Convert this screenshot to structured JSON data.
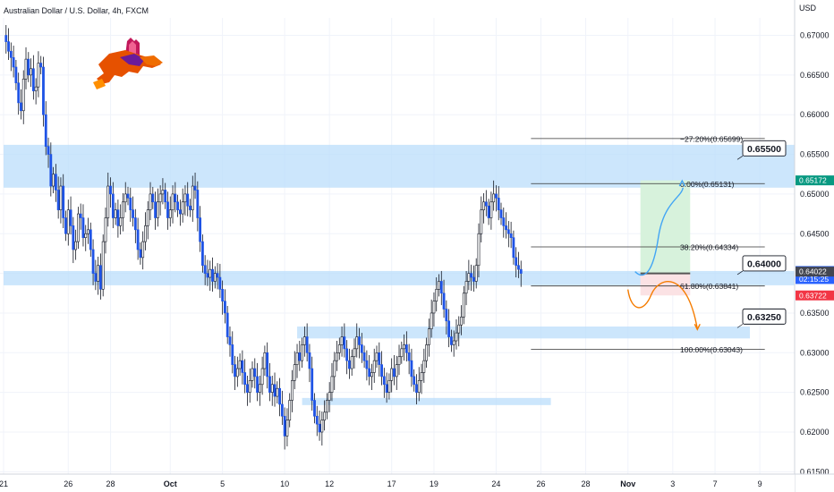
{
  "chart_data": {
    "type": "candlestick",
    "title": "Australian Dollar / U.S. Dollar, 4h, FXCM",
    "currency": "USD",
    "ylim": [
      0.6147,
      0.6722
    ],
    "y_ticks": [
      "0.67000",
      "0.66500",
      "0.66000",
      "0.65500",
      "0.65000",
      "0.64500",
      "0.64000",
      "0.63500",
      "0.63000",
      "0.62500",
      "0.62000",
      "0.61500"
    ],
    "x_ticks": [
      {
        "i": 0,
        "label": "21"
      },
      {
        "i": 26,
        "label": "26"
      },
      {
        "i": 43,
        "label": "28"
      },
      {
        "i": 67,
        "label": "Oct"
      },
      {
        "i": 88,
        "label": "5"
      },
      {
        "i": 113,
        "label": "10"
      },
      {
        "i": 131,
        "label": "12"
      },
      {
        "i": 156,
        "label": "17"
      },
      {
        "i": 173,
        "label": "19"
      },
      {
        "i": 198,
        "label": "24"
      },
      {
        "i": 216,
        "label": "26"
      },
      {
        "i": 234,
        "label": "28"
      },
      {
        "i": 251,
        "label": "Nov"
      },
      {
        "i": 269,
        "label": "3"
      },
      {
        "i": 286,
        "label": "7"
      },
      {
        "i": 304,
        "label": "9"
      }
    ],
    "candles": [
      0.67,
      0.6692,
      0.668,
      0.6672,
      0.666,
      0.664,
      0.6615,
      0.6605,
      0.6645,
      0.667,
      0.665,
      0.6658,
      0.663,
      0.6635,
      0.6665,
      0.666,
      0.66,
      0.656,
      0.655,
      0.651,
      0.6525,
      0.6505,
      0.648,
      0.651,
      0.647,
      0.645,
      0.648,
      0.646,
      0.643,
      0.644,
      0.6475,
      0.647,
      0.6445,
      0.645,
      0.6455,
      0.643,
      0.64,
      0.639,
      0.641,
      0.638,
      0.644,
      0.647,
      0.651,
      0.65,
      0.647,
      0.648,
      0.646,
      0.647,
      0.649,
      0.65,
      0.6495,
      0.648,
      0.647,
      0.6455,
      0.643,
      0.642,
      0.644,
      0.646,
      0.648,
      0.65,
      0.649,
      0.647,
      0.649,
      0.65,
      0.6505,
      0.649,
      0.647,
      0.648,
      0.65,
      0.649,
      0.648,
      0.6475,
      0.649,
      0.65,
      0.6485,
      0.648,
      0.651,
      0.6505,
      0.647,
      0.644,
      0.641,
      0.64,
      0.6395,
      0.6405,
      0.639,
      0.64,
      0.6395,
      0.638,
      0.6365,
      0.635,
      0.632,
      0.631,
      0.6285,
      0.627,
      0.628,
      0.629,
      0.6275,
      0.626,
      0.625,
      0.6265,
      0.628,
      0.627,
      0.625,
      0.626,
      0.628,
      0.63,
      0.627,
      0.625,
      0.626,
      0.6245,
      0.6255,
      0.6235,
      0.622,
      0.6195,
      0.6215,
      0.624,
      0.6265,
      0.6285,
      0.63,
      0.629,
      0.631,
      0.632,
      0.63,
      0.628,
      0.624,
      0.622,
      0.621,
      0.62,
      0.6215,
      0.6225,
      0.624,
      0.625,
      0.627,
      0.629,
      0.63,
      0.631,
      0.632,
      0.6305,
      0.629,
      0.628,
      0.6295,
      0.6305,
      0.632,
      0.631,
      0.63,
      0.629,
      0.628,
      0.627,
      0.6275,
      0.629,
      0.63,
      0.6285,
      0.627,
      0.626,
      0.625,
      0.6265,
      0.628,
      0.627,
      0.6285,
      0.6295,
      0.6305,
      0.631,
      0.63,
      0.629,
      0.627,
      0.626,
      0.625,
      0.6265,
      0.6275,
      0.629,
      0.631,
      0.633,
      0.635,
      0.6365,
      0.638,
      0.639,
      0.6375,
      0.6355,
      0.634,
      0.632,
      0.631,
      0.6315,
      0.6325,
      0.6335,
      0.6345,
      0.6375,
      0.639,
      0.64,
      0.6395,
      0.639,
      0.641,
      0.645,
      0.648,
      0.649,
      0.6485,
      0.647,
      0.649,
      0.65,
      0.6495,
      0.648,
      0.647,
      0.646,
      0.6455,
      0.645,
      0.6445,
      0.642,
      0.641,
      0.6405,
      0.64
    ]
  },
  "header": {
    "title": "Australian Dollar / U.S. Dollar, 4h, FXCM",
    "currency_label": "USD"
  },
  "zones": [
    {
      "name": "resistance-zone",
      "from": 0.6508,
      "to": 0.6562,
      "i0": 0,
      "i1": 330
    },
    {
      "name": "support-zone-0.64",
      "from": 0.6385,
      "to": 0.6403,
      "i0": 0,
      "i1": 330
    },
    {
      "name": "support-zone-0.6325",
      "from": 0.6318,
      "to": 0.6333,
      "i0": 118,
      "i1": 300
    },
    {
      "name": "demand-zone-low",
      "from": 0.6234,
      "to": 0.6243,
      "i0": 120,
      "i1": 220
    }
  ],
  "fibonacci": {
    "i0": 212,
    "i1": 306,
    "levels": [
      {
        "label": "−27.20%(0.65699)",
        "price": 0.65699
      },
      {
        "label": "0.00%(0.65131)",
        "price": 0.65131
      },
      {
        "label": "38.20%(0.64334)",
        "price": 0.64334
      },
      {
        "label": "61.80%(0.63841)",
        "price": 0.63841
      },
      {
        "label": "100.00%(0.63043)",
        "price": 0.63043
      }
    ]
  },
  "position": {
    "entry": 0.64,
    "target": 0.65172,
    "stop": 0.63722,
    "i0": 256,
    "i1": 276
  },
  "level_labels": [
    {
      "text": "0.65500",
      "price": 0.6557
    },
    {
      "text": "0.64000",
      "price": 0.6412
    },
    {
      "text": "0.63250",
      "price": 0.6345
    }
  ],
  "price_badges": [
    {
      "text": "0.65172",
      "price": 0.65172,
      "color": "#089981"
    },
    {
      "text": "0.64030",
      "text2": "02:15:25",
      "price": 0.6403,
      "color": "#2962ff"
    },
    {
      "text": "0.64022",
      "price": 0.64022,
      "color": "#434651"
    },
    {
      "text": "0.63722",
      "price": 0.63722,
      "color": "#f23645"
    }
  ],
  "colors": {
    "candle": "#1e53e5",
    "zone": "#bbdefb",
    "target_zone": "#d7f2dc",
    "stop_zone": "#fbe2e4",
    "blue_arrow": "#42a5f5",
    "orange_arrow": "#f57c00",
    "grid": "#f0f3fa",
    "border": "#d1d4dc"
  },
  "logo": {
    "name": "bull-logo"
  }
}
